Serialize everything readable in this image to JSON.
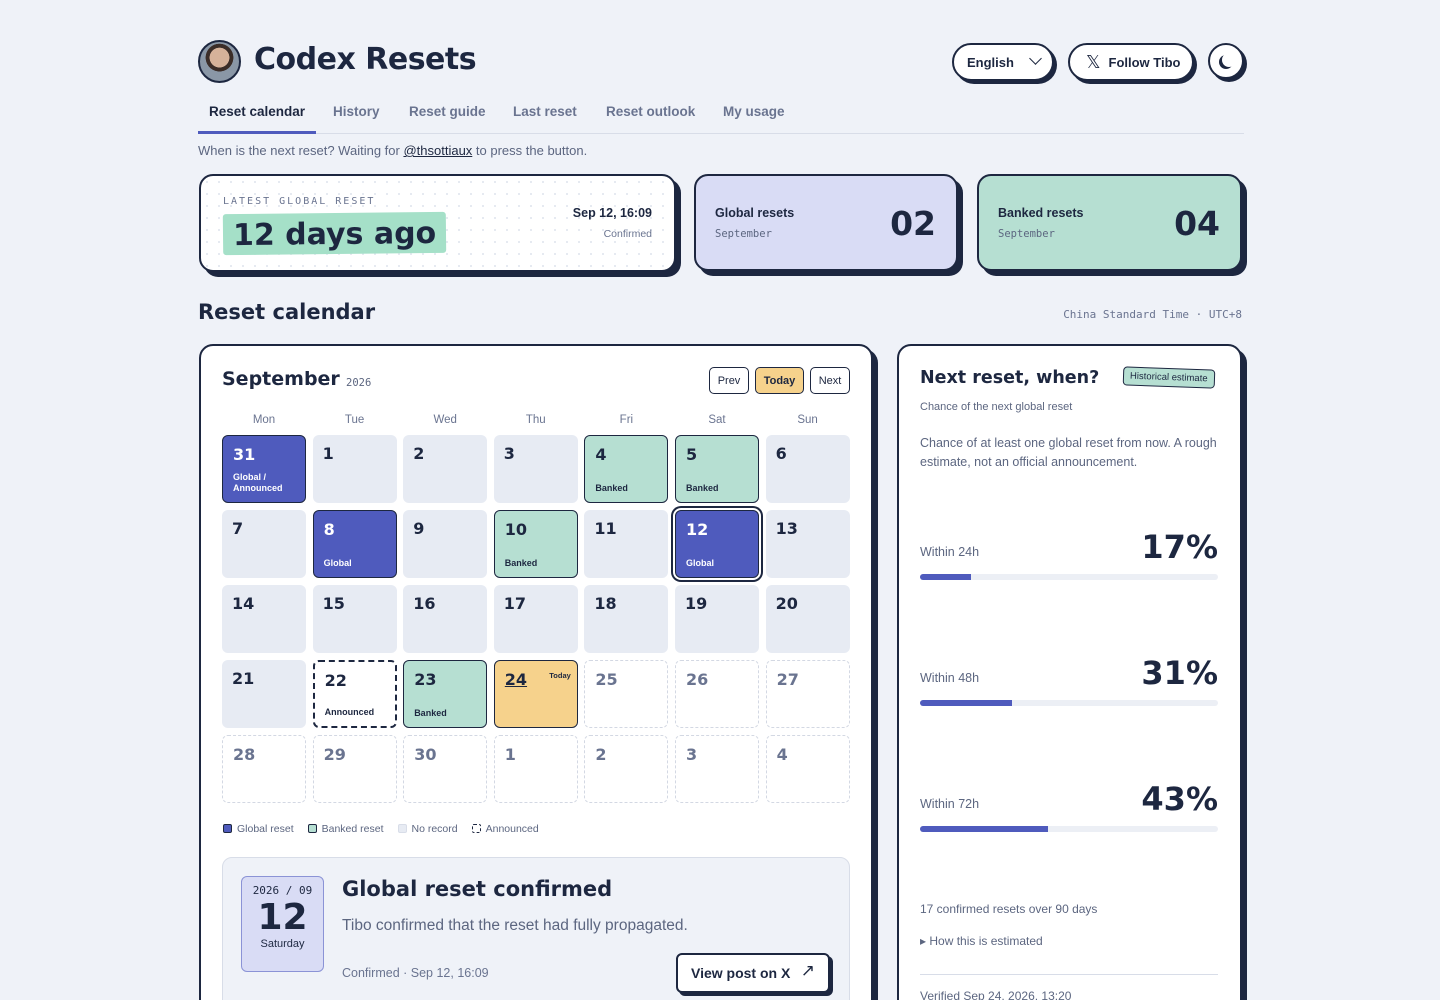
{
  "header": {
    "brand": "Codex Resets",
    "language": "English",
    "follow_label": "Follow Tibo",
    "x_glyph": "𝕏"
  },
  "tabs": [
    {
      "label": "Reset calendar",
      "active": true
    },
    {
      "label": "History"
    },
    {
      "label": "Reset guide"
    },
    {
      "label": "Last reset"
    },
    {
      "label": "Reset outlook"
    },
    {
      "label": "My usage"
    }
  ],
  "intro": {
    "before": "When is the next reset? Waiting for ",
    "handle": "@thsottiaux",
    "after": " to press the button."
  },
  "latest": {
    "label": "LATEST GLOBAL RESET",
    "value": "12 days ago",
    "date": "Sep 12, 16:09",
    "status": "Confirmed"
  },
  "global_card": {
    "title": "Global resets",
    "sub": "September",
    "value": "02"
  },
  "banked_card": {
    "title": "Banked resets",
    "sub": "September",
    "value": "04"
  },
  "calendar_section": {
    "title": "Reset calendar",
    "timezone": "China Standard Time · UTC+8"
  },
  "calendar": {
    "month": "September",
    "year": "2026",
    "prev": "Prev",
    "today": "Today",
    "next": "Next",
    "weekdays": [
      "Mon",
      "Tue",
      "Wed",
      "Thu",
      "Fri",
      "Sat",
      "Sun"
    ],
    "days": [
      {
        "d": "31",
        "type": "global",
        "label": "Global / Announced"
      },
      {
        "d": "1",
        "type": "none"
      },
      {
        "d": "2",
        "type": "none"
      },
      {
        "d": "3",
        "type": "none"
      },
      {
        "d": "4",
        "type": "banked",
        "label": "Banked"
      },
      {
        "d": "5",
        "type": "banked",
        "label": "Banked"
      },
      {
        "d": "6",
        "type": "none"
      },
      {
        "d": "7",
        "type": "none"
      },
      {
        "d": "8",
        "type": "global",
        "label": "Global"
      },
      {
        "d": "9",
        "type": "none"
      },
      {
        "d": "10",
        "type": "banked",
        "label": "Banked"
      },
      {
        "d": "11",
        "type": "none"
      },
      {
        "d": "12",
        "type": "global",
        "label": "Global",
        "selected": true
      },
      {
        "d": "13",
        "type": "none"
      },
      {
        "d": "14",
        "type": "none"
      },
      {
        "d": "15",
        "type": "none"
      },
      {
        "d": "16",
        "type": "none"
      },
      {
        "d": "17",
        "type": "none"
      },
      {
        "d": "18",
        "type": "none"
      },
      {
        "d": "19",
        "type": "none"
      },
      {
        "d": "20",
        "type": "none"
      },
      {
        "d": "21",
        "type": "none"
      },
      {
        "d": "22",
        "type": "announced",
        "label": "Announced"
      },
      {
        "d": "23",
        "type": "banked",
        "label": "Banked"
      },
      {
        "d": "24",
        "type": "today",
        "tag": "Today"
      },
      {
        "d": "25",
        "type": "future"
      },
      {
        "d": "26",
        "type": "future"
      },
      {
        "d": "27",
        "type": "future"
      },
      {
        "d": "28",
        "type": "future"
      },
      {
        "d": "29",
        "type": "future"
      },
      {
        "d": "30",
        "type": "future"
      },
      {
        "d": "1",
        "type": "future"
      },
      {
        "d": "2",
        "type": "future"
      },
      {
        "d": "3",
        "type": "future"
      },
      {
        "d": "4",
        "type": "future"
      }
    ],
    "legend": [
      {
        "label": "Global reset",
        "swatch": "global"
      },
      {
        "label": "Banked reset",
        "swatch": "banked"
      },
      {
        "label": "No record",
        "swatch": "none"
      },
      {
        "label": "Announced",
        "swatch": "announced"
      }
    ]
  },
  "detail": {
    "ym": "2026 / 09",
    "day": "12",
    "weekday": "Saturday",
    "title": "Global reset confirmed",
    "text": "Tibo confirmed that the reset had fully propagated.",
    "meta": "Confirmed · Sep 12, 16:09",
    "button": "View post on X",
    "button_icon": "↗"
  },
  "outlook": {
    "title": "Next reset, when?",
    "tag": "Historical estimate",
    "sub": "Chance of the next global reset",
    "desc": "Chance of at least one global reset from now. A rough estimate, not an official announcement.",
    "probs": [
      {
        "label": "Within 24h",
        "value": "17%",
        "fraction": 0.17
      },
      {
        "label": "Within 48h",
        "value": "31%",
        "fraction": 0.31
      },
      {
        "label": "Within 72h",
        "value": "43%",
        "fraction": 0.43
      }
    ],
    "stat": "17 confirmed resets over 90 days",
    "how": "▸ How this is estimated",
    "verified": "Verified Sep 24, 2026, 13:20"
  },
  "colors": {
    "ink": "#1d2740",
    "global": "#4f5bbd",
    "banked": "#b6dfd2",
    "today": "#f6d28c",
    "global_card": "#d9dcf5"
  }
}
